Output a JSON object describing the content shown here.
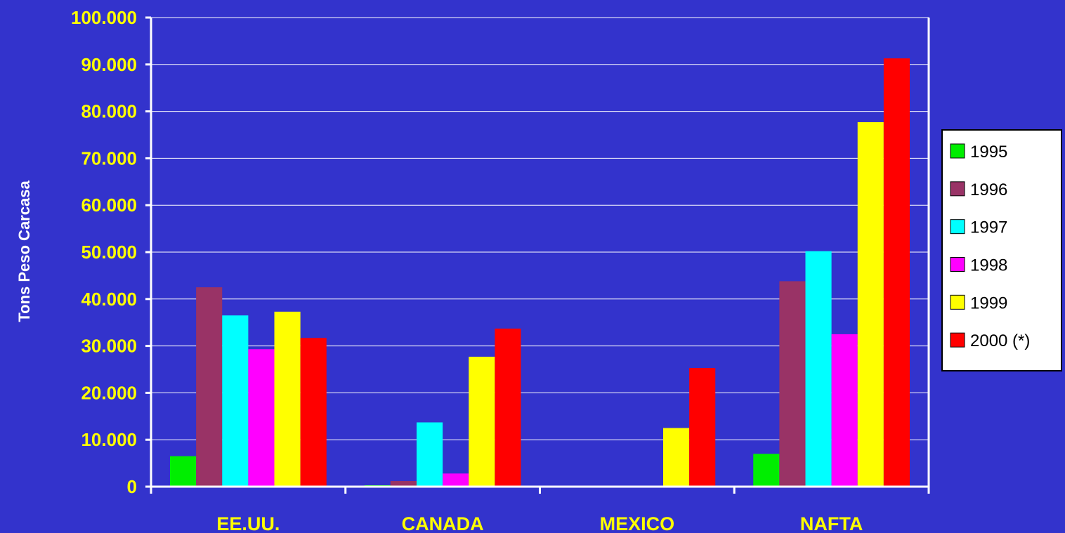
{
  "chart_data": {
    "type": "bar",
    "title": "",
    "xlabel": "",
    "ylabel": "Tons Peso Carcasa",
    "ylim": [
      0,
      100000
    ],
    "yticks": [
      0,
      10000,
      20000,
      30000,
      40000,
      50000,
      60000,
      70000,
      80000,
      90000,
      100000
    ],
    "ytick_labels": [
      "0",
      "10.000",
      "20.000",
      "30.000",
      "40.000",
      "50.000",
      "60.000",
      "70.000",
      "80.000",
      "90.000",
      "100.000"
    ],
    "categories": [
      "EE.UU.",
      "CANADA",
      "MEXICO",
      "NAFTA"
    ],
    "grid": true,
    "legend_position": "right",
    "series": [
      {
        "name": "1995",
        "color": "#00ee00",
        "values": [
          6500,
          300,
          0,
          7000
        ]
      },
      {
        "name": "1996",
        "color": "#993366",
        "values": [
          42500,
          1200,
          0,
          43800
        ]
      },
      {
        "name": "1997",
        "color": "#00ffff",
        "values": [
          36500,
          13700,
          0,
          50200
        ]
      },
      {
        "name": "1998",
        "color": "#ff00ff",
        "values": [
          29300,
          2800,
          200,
          32500
        ]
      },
      {
        "name": "1999",
        "color": "#ffff00",
        "values": [
          37300,
          27700,
          12500,
          77700
        ]
      },
      {
        "name": "2000 (*)",
        "color": "#ff0000",
        "values": [
          31700,
          33700,
          25300,
          91300
        ]
      }
    ]
  }
}
